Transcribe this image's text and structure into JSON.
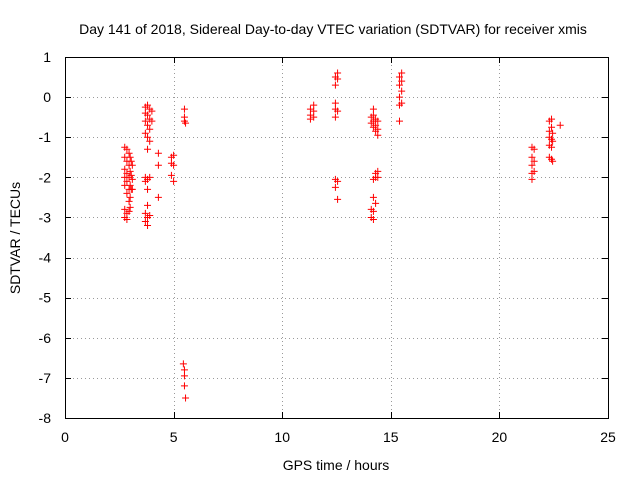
{
  "chart_data": {
    "type": "scatter",
    "title": "Day 141 of 2018, Sidereal Day-to-day VTEC variation (SDTVAR) for receiver xmis",
    "xlabel": "GPS time / hours",
    "ylabel": "SDTVAR / TECUs",
    "xlim": [
      0,
      25
    ],
    "ylim": [
      -8,
      1
    ],
    "xticks": [
      0,
      5,
      10,
      15,
      20,
      25
    ],
    "yticks": [
      1,
      0,
      -1,
      -2,
      -3,
      -4,
      -5,
      -6,
      -7,
      -8
    ],
    "grid": true,
    "marker": "+",
    "color": "#ff0000",
    "series": [
      {
        "name": "SDTVAR",
        "points": [
          [
            2.75,
            -1.25
          ],
          [
            2.75,
            -1.5
          ],
          [
            2.75,
            -1.8
          ],
          [
            2.75,
            -2.0
          ],
          [
            2.75,
            -2.2
          ],
          [
            2.75,
            -2.8
          ],
          [
            2.75,
            -3.0
          ],
          [
            2.85,
            -1.3
          ],
          [
            2.85,
            -1.6
          ],
          [
            2.85,
            -1.9
          ],
          [
            2.85,
            -2.1
          ],
          [
            2.85,
            -2.4
          ],
          [
            2.85,
            -2.9
          ],
          [
            2.85,
            -3.05
          ],
          [
            2.95,
            -1.4
          ],
          [
            2.95,
            -1.7
          ],
          [
            2.95,
            -2.0
          ],
          [
            2.95,
            -2.3
          ],
          [
            2.95,
            -2.6
          ],
          [
            2.95,
            -2.85
          ],
          [
            3.0,
            -1.5
          ],
          [
            3.0,
            -1.85
          ],
          [
            3.0,
            -2.2
          ],
          [
            3.0,
            -2.5
          ],
          [
            3.0,
            -2.75
          ],
          [
            3.05,
            -1.6
          ],
          [
            3.05,
            -1.95
          ],
          [
            3.05,
            -2.3
          ],
          [
            3.1,
            -1.7
          ],
          [
            3.1,
            -2.05
          ],
          [
            3.1,
            -2.3
          ],
          [
            3.7,
            -0.25
          ],
          [
            3.7,
            -0.4
          ],
          [
            3.7,
            -0.6
          ],
          [
            3.7,
            -0.9
          ],
          [
            3.7,
            -2.0
          ],
          [
            3.7,
            -2.1
          ],
          [
            3.7,
            -2.9
          ],
          [
            3.7,
            -3.1
          ],
          [
            3.8,
            -0.2
          ],
          [
            3.8,
            -0.45
          ],
          [
            3.8,
            -0.7
          ],
          [
            3.8,
            -1.0
          ],
          [
            3.8,
            -1.3
          ],
          [
            3.8,
            -2.05
          ],
          [
            3.8,
            -2.3
          ],
          [
            3.8,
            -2.7
          ],
          [
            3.8,
            -3.0
          ],
          [
            3.8,
            -3.2
          ],
          [
            3.9,
            -0.3
          ],
          [
            3.9,
            -0.55
          ],
          [
            3.9,
            -0.8
          ],
          [
            3.9,
            -1.1
          ],
          [
            3.9,
            -2.0
          ],
          [
            3.9,
            -2.95
          ],
          [
            4.0,
            -0.35
          ],
          [
            4.0,
            -0.6
          ],
          [
            4.3,
            -1.4
          ],
          [
            4.3,
            -1.7
          ],
          [
            4.3,
            -2.5
          ],
          [
            4.9,
            -1.5
          ],
          [
            4.9,
            -1.65
          ],
          [
            4.9,
            -1.95
          ],
          [
            5.0,
            -1.45
          ],
          [
            5.0,
            -1.7
          ],
          [
            5.0,
            -2.1
          ],
          [
            5.5,
            -0.3
          ],
          [
            5.5,
            -0.5
          ],
          [
            5.5,
            -0.6
          ],
          [
            5.55,
            -0.65
          ],
          [
            5.45,
            -6.65
          ],
          [
            5.5,
            -6.8
          ],
          [
            5.5,
            -6.95
          ],
          [
            5.5,
            -7.2
          ],
          [
            5.55,
            -7.5
          ],
          [
            11.3,
            -0.3
          ],
          [
            11.3,
            -0.45
          ],
          [
            11.3,
            -0.55
          ],
          [
            11.45,
            -0.2
          ],
          [
            11.45,
            -0.35
          ],
          [
            11.45,
            -0.5
          ],
          [
            12.45,
            0.5
          ],
          [
            12.45,
            0.3
          ],
          [
            12.45,
            -0.15
          ],
          [
            12.45,
            -0.3
          ],
          [
            12.45,
            -0.5
          ],
          [
            12.45,
            -2.05
          ],
          [
            12.45,
            -2.25
          ],
          [
            12.55,
            0.6
          ],
          [
            12.55,
            0.45
          ],
          [
            12.55,
            -0.35
          ],
          [
            12.55,
            -2.1
          ],
          [
            12.55,
            -2.55
          ],
          [
            14.1,
            -0.5
          ],
          [
            14.1,
            -0.65
          ],
          [
            14.1,
            -2.8
          ],
          [
            14.1,
            -3.0
          ],
          [
            14.2,
            -0.3
          ],
          [
            14.2,
            -0.45
          ],
          [
            14.2,
            -0.6
          ],
          [
            14.2,
            -0.75
          ],
          [
            14.2,
            -2.05
          ],
          [
            14.2,
            -2.5
          ],
          [
            14.2,
            -2.85
          ],
          [
            14.2,
            -3.05
          ],
          [
            14.3,
            -0.55
          ],
          [
            14.3,
            -0.7
          ],
          [
            14.3,
            -0.85
          ],
          [
            14.3,
            -1.9
          ],
          [
            14.3,
            -2.0
          ],
          [
            14.3,
            -2.65
          ],
          [
            14.4,
            -0.6
          ],
          [
            14.4,
            -0.8
          ],
          [
            14.4,
            -0.95
          ],
          [
            14.4,
            -1.85
          ],
          [
            14.4,
            -2.0
          ],
          [
            15.4,
            0.5
          ],
          [
            15.4,
            0.3
          ],
          [
            15.4,
            0.0
          ],
          [
            15.4,
            -0.2
          ],
          [
            15.4,
            -0.6
          ],
          [
            15.5,
            0.6
          ],
          [
            15.5,
            0.4
          ],
          [
            15.5,
            0.15
          ],
          [
            15.5,
            -0.15
          ],
          [
            21.5,
            -1.25
          ],
          [
            21.5,
            -1.5
          ],
          [
            21.5,
            -1.7
          ],
          [
            21.5,
            -1.9
          ],
          [
            21.5,
            -2.05
          ],
          [
            21.6,
            -1.3
          ],
          [
            21.6,
            -1.6
          ],
          [
            21.6,
            -1.85
          ],
          [
            22.3,
            -0.6
          ],
          [
            22.3,
            -0.85
          ],
          [
            22.3,
            -1.0
          ],
          [
            22.3,
            -1.2
          ],
          [
            22.3,
            -1.5
          ],
          [
            22.4,
            -0.55
          ],
          [
            22.4,
            -0.75
          ],
          [
            22.4,
            -1.05
          ],
          [
            22.4,
            -1.25
          ],
          [
            22.4,
            -1.55
          ],
          [
            22.45,
            -0.9
          ],
          [
            22.45,
            -1.1
          ],
          [
            22.45,
            -1.6
          ],
          [
            22.8,
            -0.7
          ]
        ]
      }
    ]
  }
}
